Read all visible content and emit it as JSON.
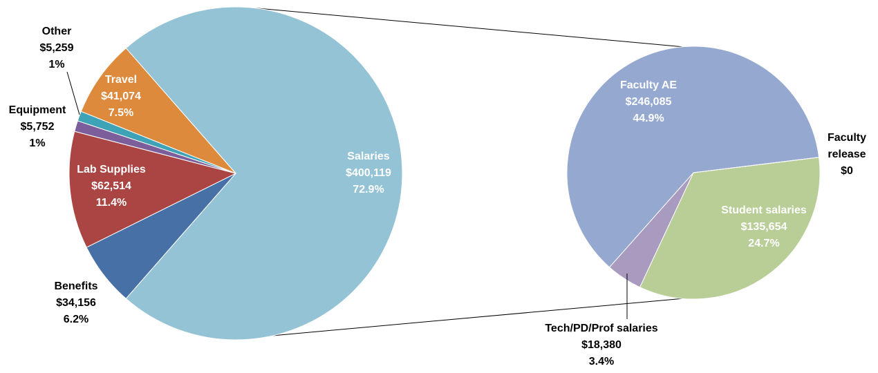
{
  "chart_data": [
    {
      "type": "pie",
      "categories": [
        "Salaries",
        "Benefits",
        "Lab Supplies",
        "Equipment",
        "Other",
        "Travel"
      ],
      "values": [
        400119,
        34156,
        62514,
        5752,
        5259,
        41074
      ],
      "value_labels": [
        "$400,119",
        "$34,156",
        "$62,514",
        "$5,752",
        "$5,259",
        "$41,074"
      ],
      "percents": [
        72.9,
        6.2,
        11.4,
        1,
        1,
        7.5
      ],
      "percent_labels": [
        "72.9%",
        "6.2%",
        "11.4%",
        "1%",
        "1%",
        "7.5%"
      ],
      "colors": [
        "#93c3d4",
        "#4670a6",
        "#ab4543",
        "#7b5e9a",
        "#3ea3b6",
        "#de8a3c"
      ]
    },
    {
      "type": "pie",
      "categories": [
        "Student salaries",
        "Tech/PD/Prof salaries",
        "Faculty AE",
        "Faculty release"
      ],
      "values": [
        135654,
        18380,
        246085,
        0
      ],
      "value_labels": [
        "$135,654",
        "$18,380",
        "$246,085",
        "$0"
      ],
      "percents": [
        24.7,
        3.4,
        44.9,
        null
      ],
      "percent_labels": [
        "24.7%",
        "3.4%",
        "44.9%",
        null
      ],
      "colors": [
        "#b9cd96",
        "#a99bbf",
        "#95a8d0",
        "#cccccc"
      ]
    }
  ]
}
